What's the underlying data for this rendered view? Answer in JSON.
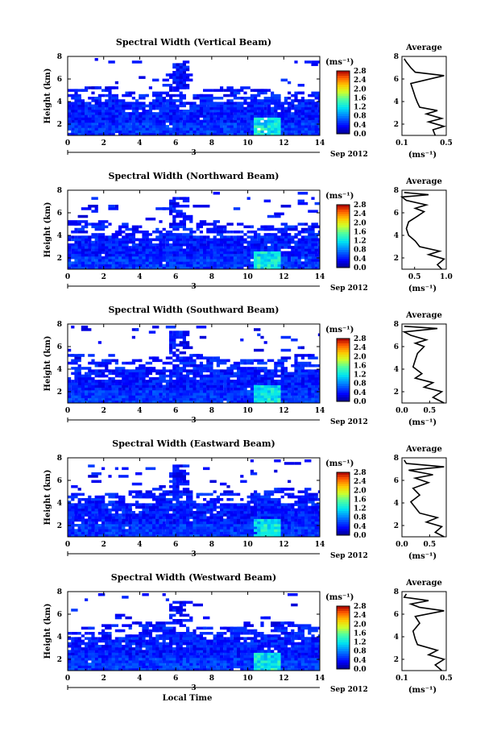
{
  "chart_data": [
    {
      "type": "heatmap",
      "title": "Spectral Width (Vertical Beam)",
      "ylabel": "Height (km)",
      "x_ticks": [
        "0",
        "2",
        "4",
        "6",
        "8",
        "10",
        "12",
        "14"
      ],
      "y_ticks": [
        "2",
        "4",
        "6",
        "8"
      ],
      "xlim": [
        0,
        14
      ],
      "ylim": [
        1,
        8
      ],
      "date_marker": "3",
      "date_label": "Sep 2012",
      "colorbar": {
        "unit": "(ms⁻¹)",
        "ticks": [
          "0.0",
          "0.4",
          "0.8",
          "1.2",
          "1.6",
          "2.0",
          "2.4",
          "2.8"
        ],
        "range": [
          0,
          2.8
        ]
      },
      "average": {
        "title": "Average",
        "x_ticks": [
          "0.1",
          "0.5"
        ],
        "y_ticks": [
          "2",
          "4",
          "6",
          "8"
        ],
        "xlim": [
          0.1,
          0.5
        ],
        "xlabel": "(ms⁻¹)"
      }
    },
    {
      "type": "heatmap",
      "title": "Spectral Width (Northward Beam)",
      "ylabel": "Height (km)",
      "x_ticks": [
        "0",
        "2",
        "4",
        "6",
        "8",
        "10",
        "12",
        "14"
      ],
      "y_ticks": [
        "2",
        "4",
        "6",
        "8"
      ],
      "xlim": [
        0,
        14
      ],
      "ylim": [
        1,
        8
      ],
      "date_marker": "3",
      "date_label": "Sep 2012",
      "colorbar": {
        "unit": "(ms⁻¹)",
        "ticks": [
          "0.0",
          "0.4",
          "0.8",
          "1.2",
          "1.6",
          "2.0",
          "2.4",
          "2.8"
        ],
        "range": [
          0,
          2.8
        ]
      },
      "average": {
        "title": "Average",
        "x_ticks": [
          "0.5",
          "1.0"
        ],
        "y_ticks": [
          "2",
          "4",
          "6",
          "8"
        ],
        "xlim": [
          0.3,
          1.0
        ],
        "xlabel": "(ms⁻¹)"
      }
    },
    {
      "type": "heatmap",
      "title": "Spectral Width (Southward Beam)",
      "ylabel": "Height (km)",
      "x_ticks": [
        "0",
        "2",
        "4",
        "6",
        "8",
        "10",
        "12",
        "14"
      ],
      "y_ticks": [
        "2",
        "4",
        "6",
        "8"
      ],
      "xlim": [
        0,
        14
      ],
      "ylim": [
        1,
        8
      ],
      "date_marker": "3",
      "date_label": "Sep 2012",
      "colorbar": {
        "unit": "(ms⁻¹)",
        "ticks": [
          "0.0",
          "0.4",
          "0.8",
          "1.2",
          "1.6",
          "2.0",
          "2.4",
          "2.8"
        ],
        "range": [
          0,
          2.8
        ]
      },
      "average": {
        "title": "Average",
        "x_ticks": [
          "0.0",
          "0.5"
        ],
        "y_ticks": [
          "2",
          "4",
          "6",
          "8"
        ],
        "xlim": [
          0.0,
          0.8
        ],
        "xlabel": "(ms⁻¹)"
      }
    },
    {
      "type": "heatmap",
      "title": "Spectral Width (Eastward Beam)",
      "ylabel": "Height (km)",
      "x_ticks": [
        "0",
        "2",
        "4",
        "6",
        "8",
        "10",
        "12",
        "14"
      ],
      "y_ticks": [
        "2",
        "4",
        "6",
        "8"
      ],
      "xlim": [
        0,
        14
      ],
      "ylim": [
        1,
        8
      ],
      "date_marker": "3",
      "date_label": "Sep 2012",
      "colorbar": {
        "unit": "(ms⁻¹)",
        "ticks": [
          "0.0",
          "0.4",
          "0.8",
          "1.2",
          "1.6",
          "2.0",
          "2.4",
          "2.8"
        ],
        "range": [
          0,
          2.8
        ]
      },
      "average": {
        "title": "Average",
        "x_ticks": [
          "0.0",
          "0.5"
        ],
        "y_ticks": [
          "2",
          "4",
          "6",
          "8"
        ],
        "xlim": [
          0.0,
          0.8
        ],
        "xlabel": "(ms⁻¹)"
      }
    },
    {
      "type": "heatmap",
      "title": "Spectral Width (Westward Beam)",
      "ylabel": "Height (km)",
      "xlabel": "Local Time",
      "x_ticks": [
        "0",
        "2",
        "4",
        "6",
        "8",
        "10",
        "12",
        "14"
      ],
      "y_ticks": [
        "2",
        "4",
        "6",
        "8"
      ],
      "xlim": [
        0,
        14
      ],
      "ylim": [
        1,
        8
      ],
      "date_marker": "3",
      "date_label": "Sep 2012",
      "colorbar": {
        "unit": "(ms⁻¹)",
        "ticks": [
          "0.0",
          "0.4",
          "0.8",
          "1.2",
          "1.6",
          "2.0",
          "2.4",
          "2.8"
        ],
        "range": [
          0,
          2.8
        ]
      },
      "average": {
        "title": "Average",
        "x_ticks": [
          "0.1",
          "0.5"
        ],
        "y_ticks": [
          "2",
          "4",
          "6",
          "8"
        ],
        "xlim": [
          0.1,
          0.5
        ],
        "xlabel": "(ms⁻¹)"
      }
    }
  ]
}
